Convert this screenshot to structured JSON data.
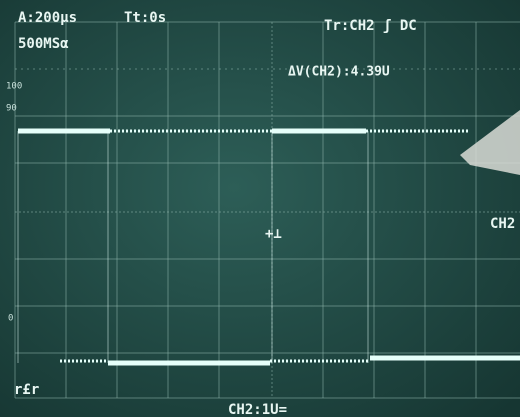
{
  "header": {
    "timebase": "A:200µs",
    "trigger_time": "Tt:0s",
    "trigger": "Tr:CH2 ʃ DC",
    "sample_rate": "500MSα"
  },
  "measurement": "ΔV(CH2):4.39U",
  "level_labels": [
    "100",
    "90",
    "0"
  ],
  "channel_marker": "CH2",
  "trigger_marker": "+⊥",
  "footer": {
    "menu": "r£r",
    "channel_scale": "CH2:1U="
  }
}
